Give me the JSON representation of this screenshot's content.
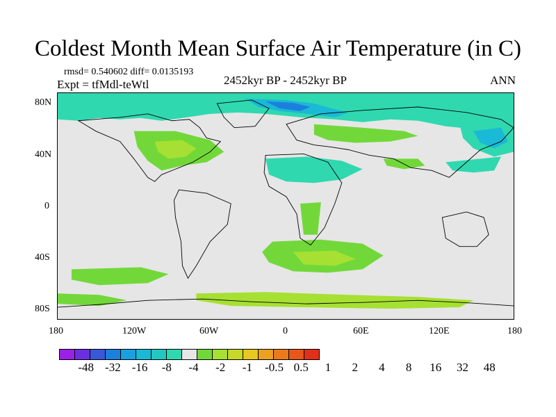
{
  "header": {
    "title": "Coldest Month Mean Surface Air Temperature (in C)",
    "stats": "rmsd= 0.540602 diff= 0.0135193",
    "expt": "Expt = tfMdl-teWtl",
    "period": "2452kyr BP - 2452kyr BP",
    "season": "ANN"
  },
  "map": {
    "lat_labels": [
      "80N",
      "40N",
      "0",
      "40S",
      "80S"
    ],
    "lon_labels": [
      "180",
      "120W",
      "60W",
      "0",
      "60E",
      "120E",
      "180"
    ],
    "background_color": "#e6e6e6"
  },
  "colorbar": {
    "colors": [
      "#9b20e8",
      "#6a2fe0",
      "#3a57d8",
      "#1d7fdc",
      "#19a0e0",
      "#1ab9d6",
      "#22c8c0",
      "#30d8b0",
      "#e6e6e6",
      "#72d83a",
      "#a6e032",
      "#c8d82a",
      "#e6c820",
      "#eaa020",
      "#ea7a1c",
      "#e8561a",
      "#e0301a"
    ],
    "labels": [
      "-48",
      "-32",
      "-16",
      "-8",
      "-4",
      "-2",
      "-1",
      "-0.5",
      "0.5",
      "1",
      "2",
      "4",
      "8",
      "16",
      "32",
      "48"
    ]
  }
}
